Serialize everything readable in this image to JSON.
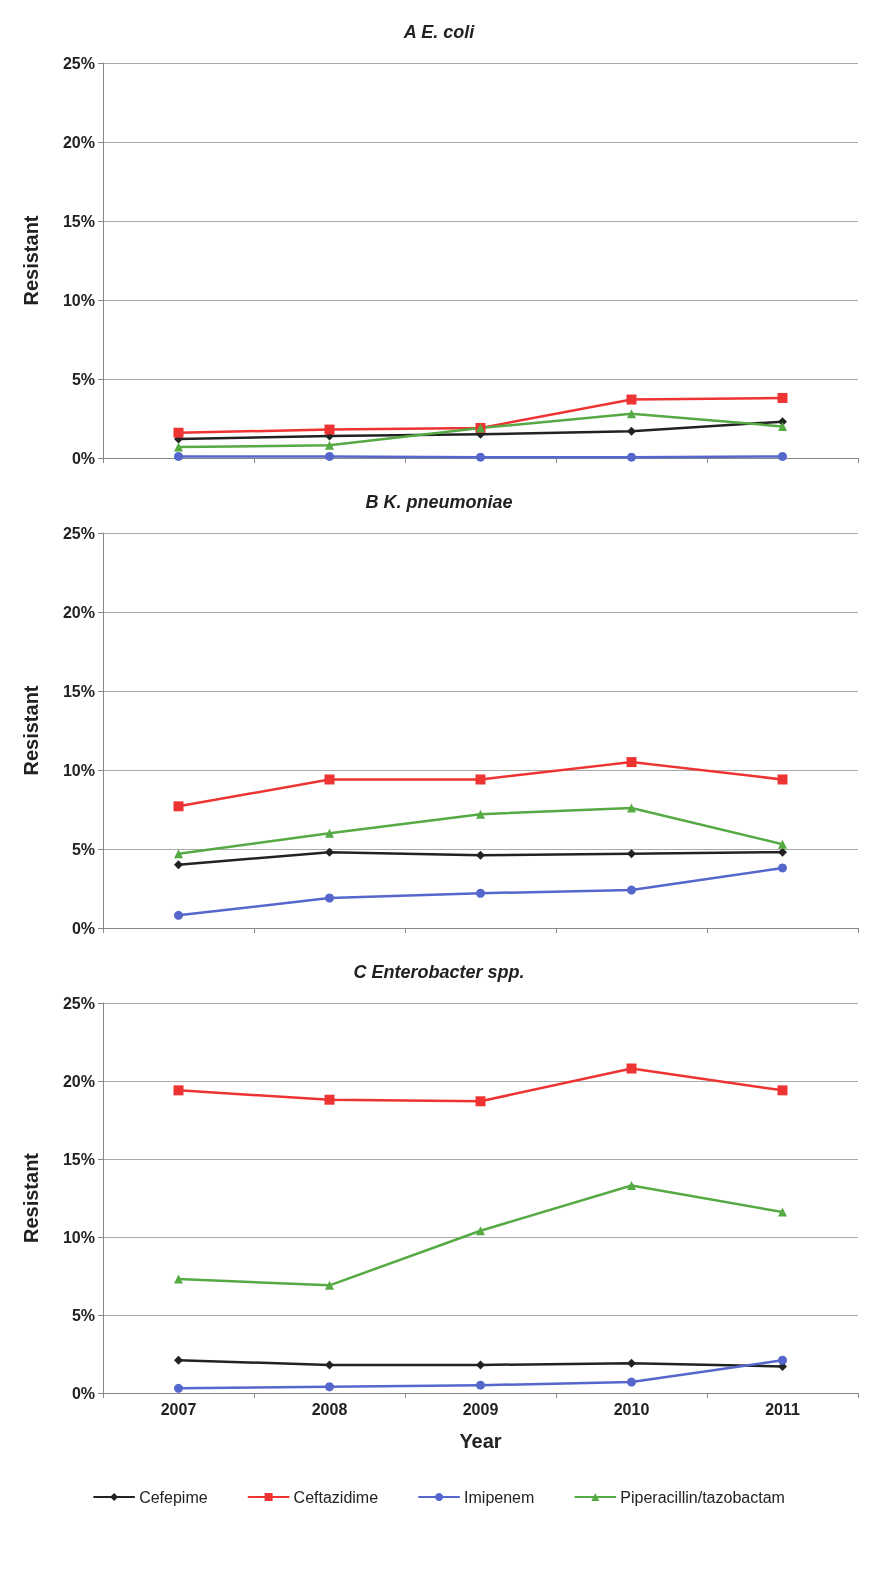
{
  "chart_data": [
    {
      "type": "line",
      "title": "A E. coli",
      "ylabel": "Resistant",
      "categories": [
        "2007",
        "2008",
        "2009",
        "2010",
        "2011"
      ],
      "ylim": [
        0,
        25
      ],
      "yticks": [
        {
          "value": 0,
          "label": "0%"
        },
        {
          "value": 5,
          "label": "5%"
        },
        {
          "value": 10,
          "label": "10%"
        },
        {
          "value": 15,
          "label": "15%"
        },
        {
          "value": 20,
          "label": "20%"
        },
        {
          "value": 25,
          "label": "25%"
        }
      ],
      "grid": "y",
      "legend": false,
      "tick_labels": "y",
      "series": [
        {
          "color": "#222222",
          "marker": "diamond",
          "values": [
            1.2,
            1.4,
            1.5,
            1.7,
            2.3
          ]
        },
        {
          "color": "#ee3333",
          "marker": "square",
          "values": [
            1.6,
            1.8,
            1.9,
            3.7,
            3.8
          ]
        },
        {
          "color": "#5566cc",
          "marker": "circle",
          "values": [
            0.1,
            0.1,
            0.05,
            0.05,
            0.1
          ]
        },
        {
          "color": "#55aa44",
          "marker": "triangle",
          "values": [
            0.7,
            0.8,
            1.9,
            2.8,
            2.0
          ]
        }
      ]
    },
    {
      "type": "line",
      "title": "B K. pneumoniae",
      "ylabel": "Resistant",
      "categories": [
        "2007",
        "2008",
        "2009",
        "2010",
        "2011"
      ],
      "ylim": [
        0,
        25
      ],
      "yticks": [
        {
          "value": 0,
          "label": "0%"
        },
        {
          "value": 5,
          "label": "5%"
        },
        {
          "value": 10,
          "label": "10%"
        },
        {
          "value": 15,
          "label": "15%"
        },
        {
          "value": 20,
          "label": "20%"
        },
        {
          "value": 25,
          "label": "25%"
        }
      ],
      "grid": "y",
      "legend": false,
      "tick_labels": "y",
      "series": [
        {
          "color": "#222222",
          "marker": "diamond",
          "values": [
            4.0,
            4.8,
            4.6,
            4.7,
            4.8
          ]
        },
        {
          "color": "#ee3333",
          "marker": "square",
          "values": [
            7.7,
            9.4,
            9.4,
            10.5,
            9.4
          ]
        },
        {
          "color": "#5566cc",
          "marker": "circle",
          "values": [
            0.8,
            1.9,
            2.2,
            2.4,
            3.8
          ]
        },
        {
          "color": "#55aa44",
          "marker": "triangle",
          "values": [
            4.7,
            6.0,
            7.2,
            7.6,
            5.3
          ]
        }
      ]
    },
    {
      "type": "line",
      "title": "C Enterobacter spp.",
      "ylabel": "Resistant",
      "xlabel": "Year",
      "categories": [
        "2007",
        "2008",
        "2009",
        "2010",
        "2011"
      ],
      "ylim": [
        0,
        25
      ],
      "yticks": [
        {
          "value": 0,
          "label": "0%"
        },
        {
          "value": 5,
          "label": "5%"
        },
        {
          "value": 10,
          "label": "10%"
        },
        {
          "value": 15,
          "label": "15%"
        },
        {
          "value": 20,
          "label": "20%"
        },
        {
          "value": 25,
          "label": "25%"
        }
      ],
      "grid": "y",
      "legend": "bottom",
      "series": [
        {
          "name": "Cefepime",
          "color": "#222222",
          "marker": "diamond",
          "values": [
            2.1,
            1.8,
            1.8,
            1.9,
            1.7
          ]
        },
        {
          "name": "Ceftazidime",
          "color": "#ee3333",
          "marker": "square",
          "values": [
            19.4,
            18.8,
            18.7,
            20.8,
            19.4
          ]
        },
        {
          "name": "Imipenem",
          "color": "#5566cc",
          "marker": "circle",
          "values": [
            0.3,
            0.4,
            0.5,
            0.7,
            2.1
          ]
        },
        {
          "name": "Piperacillin/tazobactam",
          "color": "#55aa44",
          "marker": "triangle",
          "values": [
            7.3,
            6.9,
            10.4,
            13.3,
            11.6
          ]
        }
      ]
    }
  ]
}
